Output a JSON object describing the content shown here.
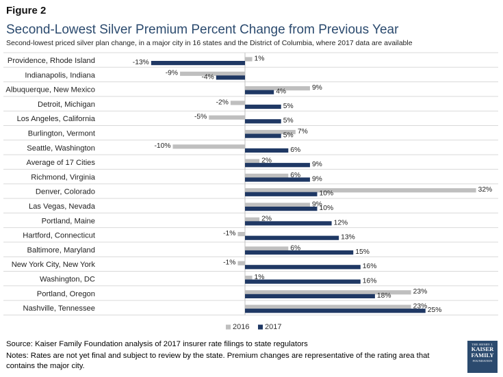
{
  "figure_label": "Figure 2",
  "footer": {
    "source": "Source: Kaiser Family Foundation analysis of 2017 insurer rate filings to state regulators",
    "notes": "Notes: Rates are not yet final and subject to review by the state. Premium changes are representative of the rating area that contains the major city."
  },
  "logo": {
    "line1": "THE HENRY J.",
    "line2": "KAISER",
    "line3": "FAMILY",
    "line4": "FOUNDATION"
  },
  "colors": {
    "s2016": "#bfbfbf",
    "s2017": "#1f3864"
  },
  "chart_data": {
    "type": "bar",
    "orientation": "horizontal",
    "title": "Second-Lowest Silver Premium Percent Change from Previous Year",
    "subtitle": "Second-lowest priced silver plan change, in a major city in 16 states and the District of Columbia, where 2017 data are available",
    "categories": [
      "Providence, Rhode Island",
      "Indianapolis, Indiana",
      "Albuquerque, New Mexico",
      "Detroit, Michigan",
      "Los Angeles, California",
      "Burlington, Vermont",
      "Seattle, Washington",
      "Average of 17 Cities",
      "Richmond, Virginia",
      "Denver, Colorado",
      "Las Vegas, Nevada",
      "Portland, Maine",
      "Hartford, Connecticut",
      "Baltimore, Maryland",
      "New York City, New York",
      "Washington, DC",
      "Portland, Oregon",
      "Nashville, Tennessee"
    ],
    "series": [
      {
        "name": "2016",
        "values": [
          1,
          -9,
          9,
          -2,
          -5,
          7,
          -10,
          2,
          6,
          32,
          9,
          2,
          -1,
          6,
          -1,
          1,
          23,
          23
        ],
        "labels": [
          "1%",
          "-9%",
          "9%",
          "-2%",
          "-5%",
          "7%",
          "-10%",
          "2%",
          "6%",
          "32%",
          "9%",
          "2%",
          "-1%",
          "6%",
          "-1%",
          "1%",
          "23%",
          "23%"
        ]
      },
      {
        "name": "2017",
        "values": [
          -13,
          -4,
          4,
          5,
          5,
          5,
          6,
          9,
          9,
          10,
          10,
          12,
          13,
          15,
          16,
          16,
          18,
          25
        ],
        "labels": [
          "-13%",
          "-4%",
          "4%",
          "5%",
          "5%",
          "5%",
          "6%",
          "9%",
          "9%",
          "10%",
          "10%",
          "12%",
          "13%",
          "15%",
          "16%",
          "16%",
          "18%",
          "25%"
        ]
      }
    ],
    "legend_position": "bottom",
    "xlim": [
      -13.5,
      32.5
    ]
  }
}
